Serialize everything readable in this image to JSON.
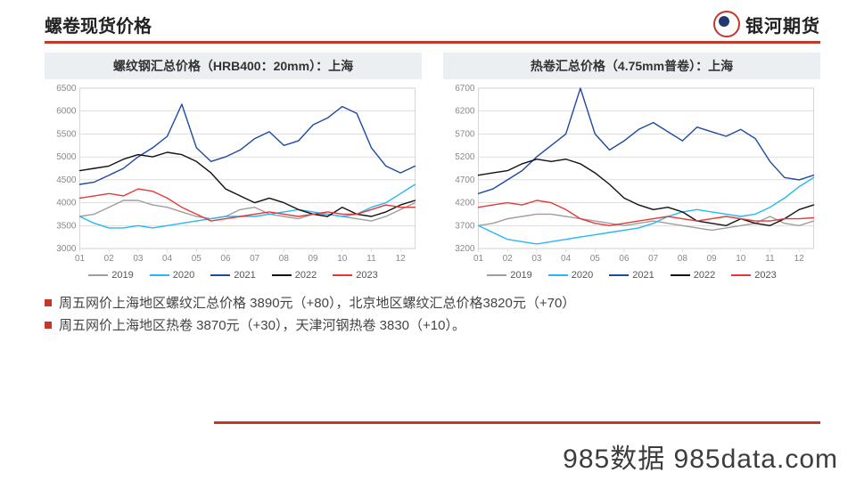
{
  "header": {
    "title": "螺卷现货价格",
    "brand": "银河期货"
  },
  "colors": {
    "accent": "#c0392b",
    "axis": "#cccccc",
    "axis_text": "#888888",
    "chart_title_bg": "#eceff2"
  },
  "months": [
    "01",
    "02",
    "03",
    "04",
    "05",
    "06",
    "07",
    "08",
    "09",
    "10",
    "11",
    "12"
  ],
  "series_meta": [
    {
      "label": "2019",
      "color": "#9e9e9e"
    },
    {
      "label": "2020",
      "color": "#29b6f6"
    },
    {
      "label": "2021",
      "color": "#1f4aa0"
    },
    {
      "label": "2022",
      "color": "#111111"
    },
    {
      "label": "2023",
      "color": "#e53935"
    }
  ],
  "chart_left": {
    "title": "螺纹钢汇总价格（HRB400：20mm）：上海",
    "ylim": [
      3000,
      6500
    ],
    "ystep": 500,
    "series": {
      "2019": [
        3700,
        3750,
        3900,
        4050,
        4050,
        3950,
        3900,
        3800,
        3700,
        3650,
        3700,
        3850,
        3900,
        3750,
        3700,
        3650,
        3750,
        3750,
        3700,
        3650,
        3600,
        3700,
        3850,
        4000
      ],
      "2020": [
        3700,
        3550,
        3450,
        3450,
        3500,
        3450,
        3500,
        3550,
        3600,
        3650,
        3700,
        3700,
        3700,
        3750,
        3800,
        3850,
        3800,
        3750,
        3700,
        3750,
        3900,
        4000,
        4200,
        4400
      ],
      "2021": [
        4400,
        4450,
        4600,
        4750,
        5000,
        5200,
        5450,
        6150,
        5200,
        4900,
        5000,
        5150,
        5400,
        5550,
        5250,
        5350,
        5700,
        5850,
        6100,
        5950,
        5200,
        4800,
        4650,
        4800
      ],
      "2022": [
        4700,
        4750,
        4800,
        4950,
        5050,
        5000,
        5100,
        5050,
        4900,
        4650,
        4300,
        4150,
        4000,
        4100,
        4000,
        3850,
        3750,
        3700,
        3900,
        3750,
        3700,
        3800,
        3950,
        4050
      ],
      "2023": [
        4100,
        4150,
        4200,
        4150,
        4300,
        4250,
        4100,
        3900,
        3750,
        3600,
        3650,
        3700,
        3750,
        3800,
        3750,
        3700,
        3750,
        3800,
        3750,
        3750,
        3850,
        3950,
        3900,
        3900
      ]
    }
  },
  "chart_right": {
    "title": "热卷汇总价格（4.75mm普卷）：上海",
    "ylim": [
      3200,
      6700
    ],
    "ystep": 500,
    "series": {
      "2019": [
        3700,
        3750,
        3850,
        3900,
        3950,
        3950,
        3900,
        3850,
        3800,
        3750,
        3700,
        3750,
        3800,
        3750,
        3700,
        3650,
        3600,
        3650,
        3700,
        3750,
        3900,
        3750,
        3700,
        3800
      ],
      "2020": [
        3700,
        3550,
        3400,
        3350,
        3300,
        3350,
        3400,
        3450,
        3500,
        3550,
        3600,
        3650,
        3750,
        3900,
        4000,
        4050,
        4000,
        3950,
        3900,
        3950,
        4100,
        4300,
        4550,
        4750
      ],
      "2021": [
        4400,
        4500,
        4700,
        4900,
        5200,
        5450,
        5700,
        6700,
        5700,
        5350,
        5550,
        5800,
        5950,
        5750,
        5550,
        5850,
        5750,
        5650,
        5800,
        5600,
        5100,
        4750,
        4700,
        4800
      ],
      "2022": [
        4800,
        4850,
        4900,
        5050,
        5150,
        5100,
        5150,
        5050,
        4850,
        4600,
        4300,
        4150,
        4050,
        4100,
        4000,
        3800,
        3750,
        3700,
        3850,
        3750,
        3700,
        3850,
        4050,
        4150
      ],
      "2023": [
        4100,
        4150,
        4200,
        4150,
        4250,
        4200,
        4050,
        3850,
        3750,
        3700,
        3750,
        3800,
        3850,
        3900,
        3850,
        3800,
        3850,
        3900,
        3850,
        3800,
        3800,
        3850,
        3850,
        3870
      ]
    }
  },
  "bullets": [
    "周五网价上海地区螺纹汇总价格 3890元（+80），北京地区螺纹汇总价格3820元（+70）",
    "周五网价上海地区热卷 3870元（+30），天津河钢热卷 3830（+10）。"
  ],
  "watermark": "985数据 985data.com"
}
